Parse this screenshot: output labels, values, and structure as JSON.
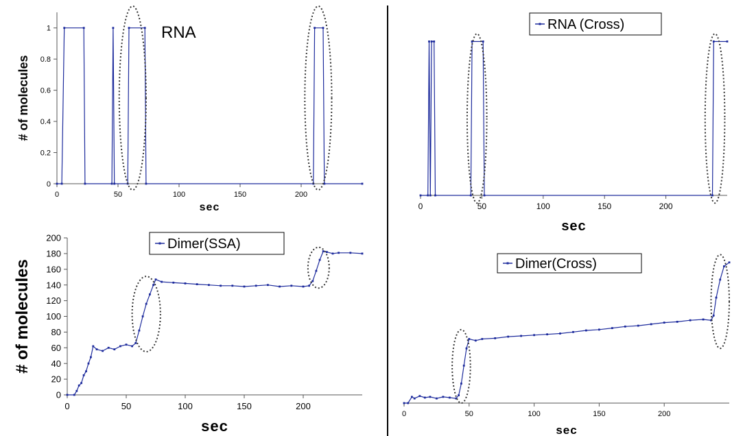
{
  "colors": {
    "series": "#1c2a9c",
    "axis": "#555555",
    "divider": "#000000",
    "ellipse": "#333333"
  },
  "chart_data": [
    {
      "id": "rna-ssa",
      "type": "line",
      "title": "RNA",
      "xlabel": "sec",
      "ylabel": "# of molecules",
      "xlim": [
        0,
        250
      ],
      "ylim": [
        0,
        1.1
      ],
      "xticks": [
        0,
        50,
        100,
        150,
        200
      ],
      "yticks": [
        0,
        0.2,
        0.4,
        0.6,
        0.8,
        1
      ],
      "legend": false,
      "series": [
        {
          "values": [
            [
              0,
              0
            ],
            [
              4,
              0
            ],
            [
              6,
              1
            ],
            [
              22,
              1
            ],
            [
              23,
              0
            ],
            [
              45,
              0
            ],
            [
              46,
              1
            ],
            [
              47,
              0
            ],
            [
              58,
              0
            ],
            [
              59,
              1
            ],
            [
              72,
              1
            ],
            [
              73,
              0
            ],
            [
              210,
              0
            ],
            [
              211,
              1
            ],
            [
              218,
              1
            ],
            [
              219,
              0
            ],
            [
              250,
              0
            ]
          ]
        }
      ],
      "highlights": [
        {
          "cx": 62,
          "cy": 0.55,
          "rx": 11,
          "ry": 0.59
        },
        {
          "cx": 214,
          "cy": 0.55,
          "rx": 11,
          "ry": 0.59
        }
      ]
    },
    {
      "id": "rna-cross",
      "type": "line",
      "title": "",
      "xlabel": "sec",
      "ylabel": "",
      "xlim": [
        0,
        250
      ],
      "ylim": [
        0,
        1.1
      ],
      "xticks": [
        0,
        50,
        100,
        150,
        200
      ],
      "yticks": [],
      "legend": true,
      "legend_position": "top-center",
      "series": [
        {
          "name": "RNA (Cross)",
          "values": [
            [
              0,
              0
            ],
            [
              6,
              0
            ],
            [
              7,
              1
            ],
            [
              8,
              0
            ],
            [
              9,
              1
            ],
            [
              11,
              1
            ],
            [
              12,
              0
            ],
            [
              41,
              0
            ],
            [
              42,
              1
            ],
            [
              51,
              1
            ],
            [
              52,
              0
            ],
            [
              238,
              0
            ],
            [
              239,
              1
            ],
            [
              250,
              1
            ]
          ]
        }
      ],
      "highlights": [
        {
          "cx": 46,
          "cy": 0.5,
          "rx": 8,
          "ry": 0.55
        },
        {
          "cx": 240,
          "cy": 0.5,
          "rx": 8,
          "ry": 0.55
        }
      ]
    },
    {
      "id": "dimer-ssa",
      "type": "line",
      "title": "",
      "xlabel": "sec",
      "ylabel": "# of molecules",
      "xlim": [
        0,
        250
      ],
      "ylim": [
        0,
        200
      ],
      "xticks": [
        0,
        50,
        100,
        150,
        200
      ],
      "yticks": [
        0,
        20,
        40,
        60,
        80,
        100,
        120,
        140,
        160,
        180,
        200
      ],
      "legend": true,
      "legend_position": "top-center",
      "series": [
        {
          "name": "Dimer(SSA)",
          "values": [
            [
              0,
              0
            ],
            [
              6,
              0
            ],
            [
              8,
              5
            ],
            [
              10,
              12
            ],
            [
              12,
              15
            ],
            [
              14,
              25
            ],
            [
              16,
              30
            ],
            [
              18,
              40
            ],
            [
              20,
              48
            ],
            [
              22,
              62
            ],
            [
              25,
              58
            ],
            [
              30,
              56
            ],
            [
              35,
              60
            ],
            [
              40,
              58
            ],
            [
              45,
              62
            ],
            [
              50,
              64
            ],
            [
              55,
              62
            ],
            [
              58,
              66
            ],
            [
              61,
              82
            ],
            [
              64,
              100
            ],
            [
              67,
              116
            ],
            [
              70,
              128
            ],
            [
              73,
              140
            ],
            [
              75,
              147
            ],
            [
              80,
              144
            ],
            [
              90,
              143
            ],
            [
              100,
              142
            ],
            [
              110,
              141
            ],
            [
              120,
              140
            ],
            [
              130,
              139
            ],
            [
              140,
              139
            ],
            [
              150,
              138
            ],
            [
              160,
              139
            ],
            [
              170,
              140
            ],
            [
              180,
              138
            ],
            [
              190,
              139
            ],
            [
              200,
              138
            ],
            [
              205,
              139
            ],
            [
              208,
              145
            ],
            [
              211,
              158
            ],
            [
              214,
              172
            ],
            [
              217,
              183
            ],
            [
              220,
              182
            ],
            [
              225,
              180
            ],
            [
              230,
              181
            ],
            [
              240,
              181
            ],
            [
              250,
              180
            ]
          ]
        }
      ],
      "highlights": [
        {
          "cx": 67,
          "cy": 103,
          "rx": 12,
          "ry": 48
        },
        {
          "cx": 213,
          "cy": 162,
          "rx": 9,
          "ry": 26
        }
      ]
    },
    {
      "id": "dimer-cross",
      "type": "line",
      "title": "",
      "xlabel": "sec",
      "ylabel": "",
      "xlim": [
        0,
        250
      ],
      "ylim": [
        0,
        200
      ],
      "xticks": [
        0,
        50,
        100,
        150,
        200
      ],
      "yticks": [],
      "legend": true,
      "legend_position": "top-center",
      "series": [
        {
          "name": "Dimer(Cross)",
          "values": [
            [
              0,
              0
            ],
            [
              3,
              0
            ],
            [
              6,
              8
            ],
            [
              8,
              6
            ],
            [
              12,
              9
            ],
            [
              16,
              7
            ],
            [
              20,
              8
            ],
            [
              25,
              6
            ],
            [
              30,
              8
            ],
            [
              35,
              7
            ],
            [
              40,
              6
            ],
            [
              42,
              10
            ],
            [
              44,
              25
            ],
            [
              46,
              48
            ],
            [
              48,
              70
            ],
            [
              50,
              82
            ],
            [
              55,
              80
            ],
            [
              60,
              82
            ],
            [
              70,
              83
            ],
            [
              80,
              85
            ],
            [
              90,
              86
            ],
            [
              100,
              87
            ],
            [
              110,
              88
            ],
            [
              120,
              89
            ],
            [
              130,
              91
            ],
            [
              140,
              93
            ],
            [
              150,
              94
            ],
            [
              160,
              96
            ],
            [
              170,
              98
            ],
            [
              180,
              99
            ],
            [
              190,
              101
            ],
            [
              200,
              103
            ],
            [
              210,
              104
            ],
            [
              220,
              106
            ],
            [
              230,
              107
            ],
            [
              236,
              106
            ],
            [
              238,
              112
            ],
            [
              240,
              135
            ],
            [
              243,
              158
            ],
            [
              246,
              175
            ],
            [
              250,
              180
            ]
          ]
        }
      ],
      "highlights": [
        {
          "cx": 44,
          "cy": 47,
          "rx": 7,
          "ry": 47
        },
        {
          "cx": 243,
          "cy": 130,
          "rx": 7,
          "ry": 60
        }
      ]
    }
  ]
}
